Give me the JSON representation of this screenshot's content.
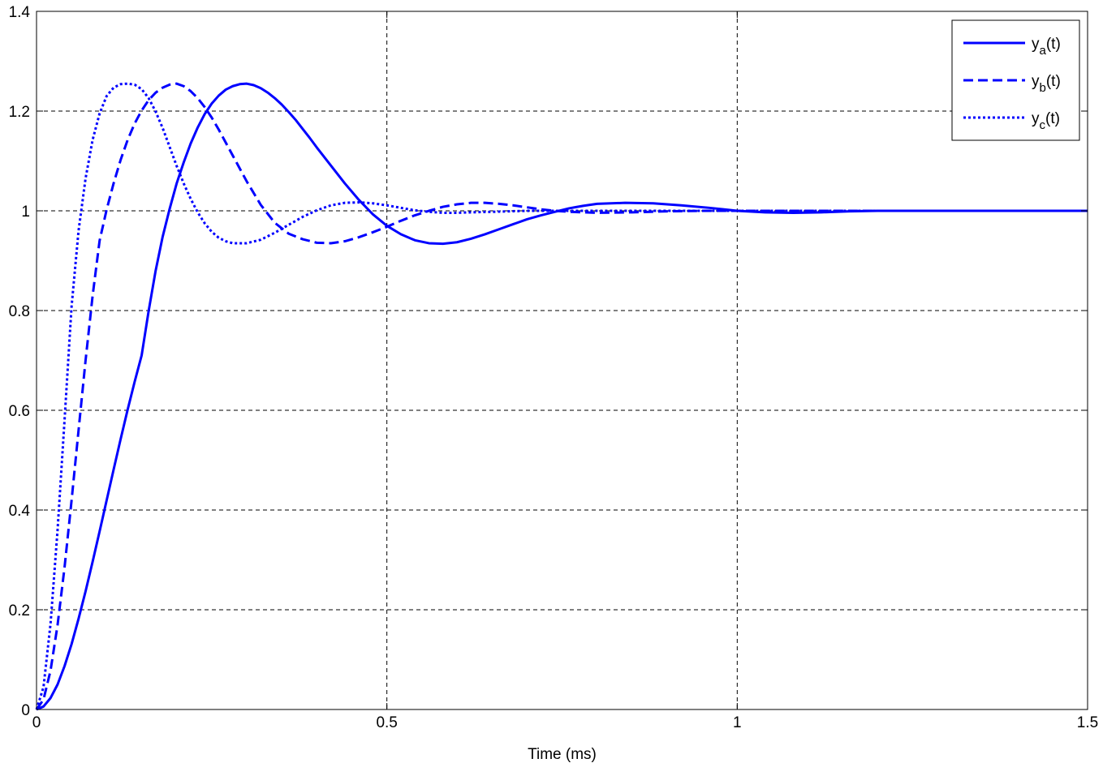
{
  "chart_data": {
    "type": "line",
    "title": "",
    "xlabel": "Time (ms)",
    "ylabel": "",
    "xlim": [
      0,
      1.5
    ],
    "ylim": [
      0,
      1.4
    ],
    "x_ticks": [
      0,
      0.5,
      1,
      1.5
    ],
    "x_tick_labels": [
      "0",
      "0.5",
      "1",
      "1.5"
    ],
    "y_ticks": [
      0,
      0.2,
      0.4,
      0.6,
      0.8,
      1,
      1.2,
      1.4
    ],
    "y_tick_labels": [
      "0",
      "0.2",
      "0.4",
      "0.6",
      "0.8",
      "1",
      "1.2",
      "1.4"
    ],
    "grid": true,
    "legend_position": "top-right",
    "line_color": "#0000ff",
    "series": [
      {
        "name": "y_a(t)",
        "base": "y",
        "subscript": "a",
        "suffix": "(t)",
        "style": "solid",
        "x": [
          0,
          0.01,
          0.02,
          0.03,
          0.04,
          0.05,
          0.06,
          0.07,
          0.08,
          0.09,
          0.1,
          0.11,
          0.12,
          0.13,
          0.14,
          0.15,
          0.16,
          0.17,
          0.18,
          0.19,
          0.2,
          0.21,
          0.22,
          0.23,
          0.24,
          0.25,
          0.26,
          0.27,
          0.28,
          0.29,
          0.3,
          0.31,
          0.32,
          0.33,
          0.34,
          0.35,
          0.36,
          0.37,
          0.38,
          0.39,
          0.4,
          0.42,
          0.44,
          0.46,
          0.48,
          0.5,
          0.52,
          0.54,
          0.56,
          0.58,
          0.6,
          0.62,
          0.64,
          0.66,
          0.68,
          0.7,
          0.72,
          0.74,
          0.76,
          0.78,
          0.8,
          0.84,
          0.88,
          0.92,
          0.96,
          1.0,
          1.04,
          1.08,
          1.12,
          1.16,
          1.2,
          1.25,
          1.3,
          1.35,
          1.4,
          1.45,
          1.5
        ],
        "values": [
          0.0,
          0.006,
          0.023,
          0.05,
          0.087,
          0.131,
          0.182,
          0.237,
          0.296,
          0.357,
          0.419,
          0.481,
          0.542,
          0.601,
          0.657,
          0.71,
          0.799,
          0.88,
          0.948,
          1.004,
          1.055,
          1.097,
          1.135,
          1.167,
          1.194,
          1.215,
          1.231,
          1.243,
          1.25,
          1.254,
          1.255,
          1.252,
          1.246,
          1.237,
          1.226,
          1.213,
          1.198,
          1.182,
          1.164,
          1.146,
          1.127,
          1.091,
          1.055,
          1.022,
          0.993,
          0.97,
          0.953,
          0.941,
          0.935,
          0.934,
          0.937,
          0.944,
          0.953,
          0.963,
          0.973,
          0.983,
          0.991,
          0.998,
          1.005,
          1.01,
          1.014,
          1.016,
          1.015,
          1.011,
          1.006,
          1.0,
          0.997,
          0.996,
          0.997,
          0.999,
          1.0,
          1.0,
          1.0,
          1.0,
          1.0,
          1.0,
          1.0
        ]
      },
      {
        "name": "y_b(t)",
        "base": "y",
        "subscript": "b",
        "suffix": "(t)",
        "style": "dashed",
        "x": [
          0,
          0.01,
          0.02,
          0.03,
          0.04,
          0.05,
          0.06,
          0.07,
          0.08,
          0.09,
          0.1,
          0.11,
          0.12,
          0.13,
          0.14,
          0.15,
          0.16,
          0.17,
          0.18,
          0.19,
          0.2,
          0.21,
          0.22,
          0.23,
          0.24,
          0.25,
          0.26,
          0.27,
          0.28,
          0.29,
          0.3,
          0.32,
          0.34,
          0.36,
          0.38,
          0.4,
          0.42,
          0.44,
          0.46,
          0.48,
          0.5,
          0.52,
          0.54,
          0.56,
          0.58,
          0.6,
          0.62,
          0.64,
          0.66,
          0.68,
          0.7,
          0.72,
          0.74,
          0.76,
          0.78,
          0.8,
          0.85,
          0.9,
          0.95,
          1.0,
          1.1,
          1.2,
          1.3,
          1.4,
          1.5
        ],
        "values": [
          0.0,
          0.02,
          0.078,
          0.169,
          0.285,
          0.419,
          0.56,
          0.7,
          0.829,
          0.94,
          1.002,
          1.055,
          1.102,
          1.142,
          1.175,
          1.201,
          1.222,
          1.237,
          1.247,
          1.253,
          1.255,
          1.25,
          1.24,
          1.226,
          1.208,
          1.187,
          1.163,
          1.137,
          1.111,
          1.085,
          1.059,
          1.012,
          0.976,
          0.954,
          0.943,
          0.936,
          0.935,
          0.939,
          0.947,
          0.957,
          0.968,
          0.98,
          0.991,
          1.0,
          1.008,
          1.013,
          1.016,
          1.016,
          1.014,
          1.011,
          1.007,
          1.003,
          1.0,
          0.998,
          0.997,
          0.996,
          0.997,
          0.999,
          1.0,
          1.0,
          1.0,
          1.0,
          1.0,
          1.0,
          1.0
        ]
      },
      {
        "name": "y_c(t)",
        "base": "y",
        "subscript": "c",
        "suffix": "(t)",
        "style": "dotted",
        "x": [
          0,
          0.01,
          0.02,
          0.03,
          0.04,
          0.05,
          0.06,
          0.07,
          0.08,
          0.09,
          0.1,
          0.11,
          0.12,
          0.13,
          0.14,
          0.15,
          0.16,
          0.17,
          0.18,
          0.19,
          0.2,
          0.21,
          0.22,
          0.23,
          0.24,
          0.25,
          0.26,
          0.27,
          0.28,
          0.3,
          0.32,
          0.34,
          0.36,
          0.38,
          0.4,
          0.42,
          0.44,
          0.46,
          0.48,
          0.5,
          0.52,
          0.54,
          0.56,
          0.58,
          0.6,
          0.62,
          0.65,
          0.7,
          0.75,
          0.8,
          0.9,
          1.0,
          1.1,
          1.2,
          1.3,
          1.4,
          1.5
        ],
        "values": [
          0.0,
          0.045,
          0.172,
          0.359,
          0.58,
          0.808,
          0.96,
          1.065,
          1.142,
          1.195,
          1.23,
          1.247,
          1.254,
          1.255,
          1.253,
          1.244,
          1.226,
          1.199,
          1.166,
          1.128,
          1.09,
          1.055,
          1.024,
          0.997,
          0.975,
          0.958,
          0.946,
          0.939,
          0.935,
          0.935,
          0.942,
          0.956,
          0.972,
          0.988,
          1.001,
          1.011,
          1.016,
          1.017,
          1.015,
          1.011,
          1.006,
          1.001,
          0.998,
          0.996,
          0.996,
          0.997,
          0.998,
          1.0,
          1.0,
          1.0,
          1.0,
          1.0,
          1.0,
          1.0,
          1.0,
          1.0,
          1.0
        ]
      }
    ]
  }
}
